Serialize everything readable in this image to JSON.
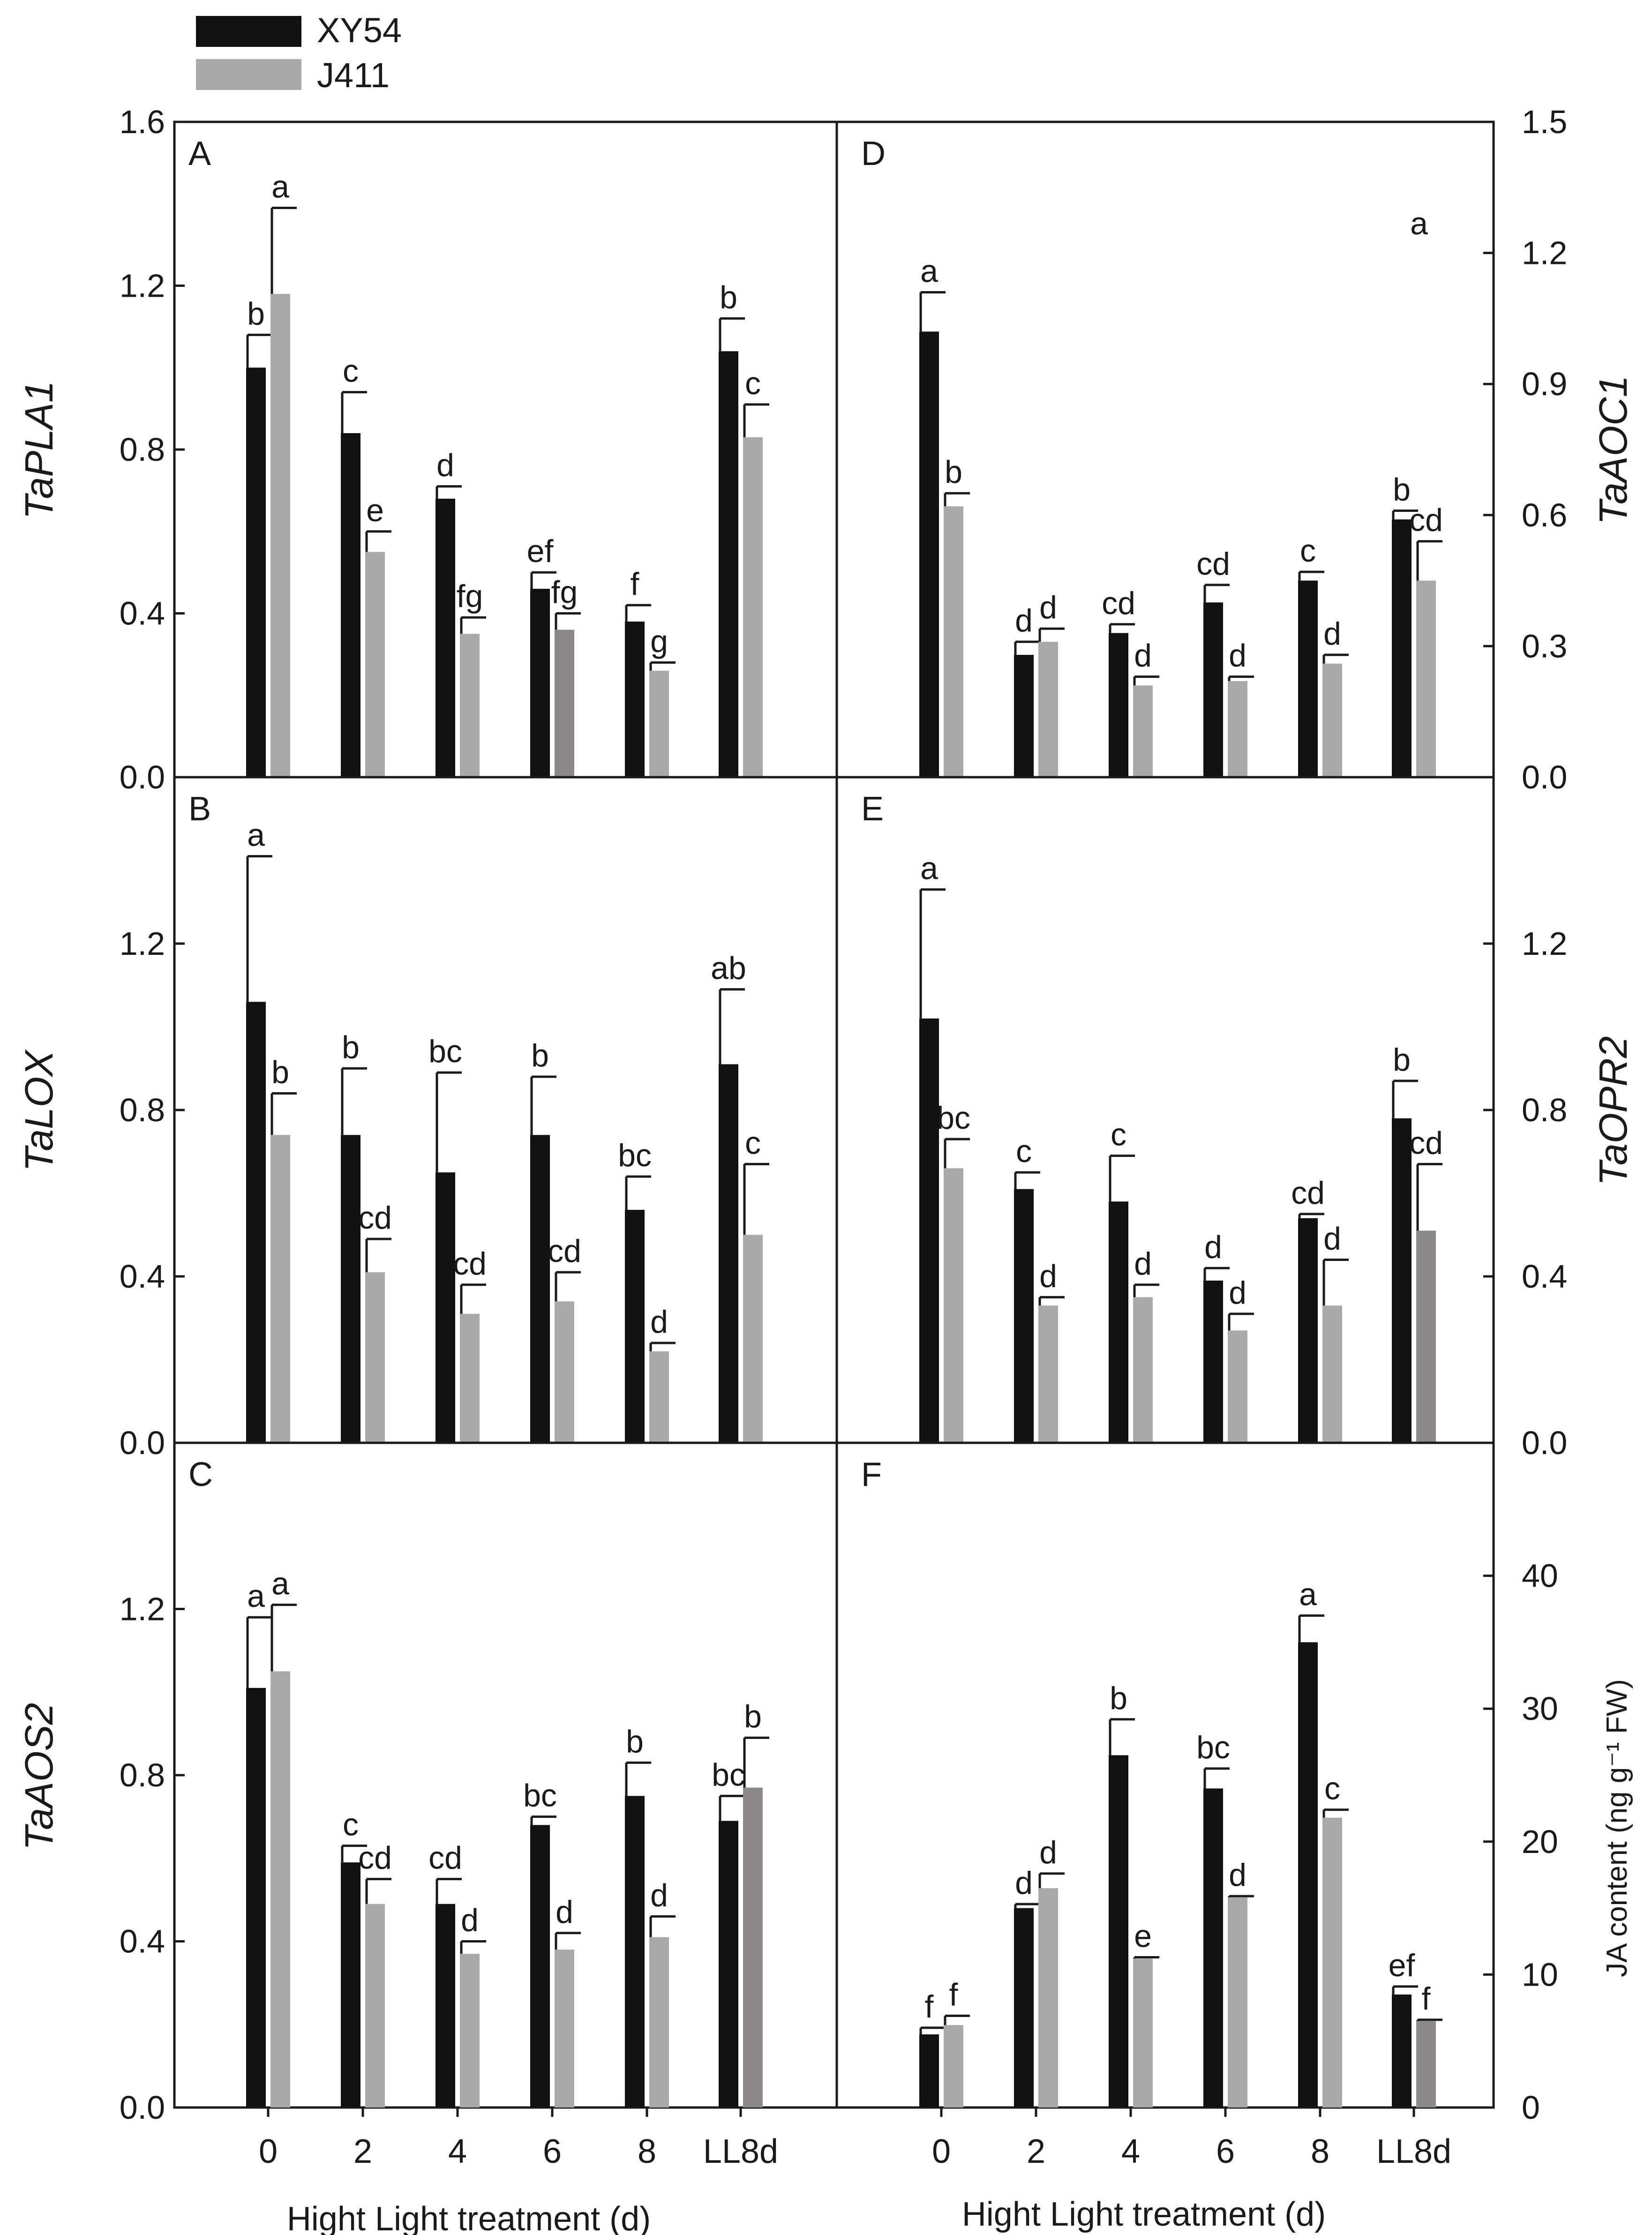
{
  "legend": [
    {
      "name": "XY54",
      "color": "#111111"
    },
    {
      "name": "J411",
      "color": "#a9a9a9"
    }
  ],
  "categories": [
    "0",
    "2",
    "4",
    "6",
    "8",
    "LL8d"
  ],
  "xlabel": "Hight Light treatment (d)",
  "special_color": "#8f8888",
  "chart_data": [
    {
      "type": "bar",
      "panel": "A",
      "ylabel": "TaPLA1",
      "ylim": [
        0,
        1.6
      ],
      "yticks": [
        "0.0",
        "0.4",
        "0.8",
        "1.2",
        "1.6"
      ],
      "series": [
        {
          "name": "XY54",
          "values": [
            1.0,
            0.84,
            0.68,
            0.46,
            0.38,
            1.04
          ],
          "errors": [
            0.08,
            0.1,
            0.03,
            0.04,
            0.04,
            0.08
          ],
          "letters": [
            "b",
            "c",
            "d",
            "ef",
            "f",
            "b"
          ]
        },
        {
          "name": "J411",
          "values": [
            1.18,
            0.55,
            0.35,
            0.36,
            0.26,
            0.83
          ],
          "errors": [
            0.21,
            0.05,
            0.04,
            0.04,
            0.02,
            0.08
          ],
          "letters": [
            "a",
            "e",
            "fg",
            "fg",
            "g",
            "c"
          ]
        }
      ],
      "special_bars": [
        [
          1,
          3
        ]
      ]
    },
    {
      "type": "bar",
      "panel": "B",
      "ylabel": "TaLOX",
      "ylim": [
        0,
        1.6
      ],
      "yticks": [
        "0.0",
        "0.4",
        "0.8",
        "1.2"
      ],
      "series": [
        {
          "name": "XY54",
          "values": [
            1.06,
            0.74,
            0.65,
            0.74,
            0.56,
            0.91
          ],
          "errors": [
            0.35,
            0.16,
            0.24,
            0.14,
            0.08,
            0.18
          ],
          "letters": [
            "a",
            "b",
            "bc",
            "b",
            "bc",
            "ab"
          ]
        },
        {
          "name": "J411",
          "values": [
            0.74,
            0.41,
            0.31,
            0.34,
            0.22,
            0.5
          ],
          "errors": [
            0.1,
            0.08,
            0.07,
            0.07,
            0.02,
            0.17
          ],
          "letters": [
            "b",
            "cd",
            "cd",
            "cd",
            "d",
            "c"
          ]
        }
      ],
      "special_bars": []
    },
    {
      "type": "bar",
      "panel": "C",
      "ylabel": "TaAOS2",
      "ylim": [
        0,
        1.6
      ],
      "yticks": [
        "0.0",
        "0.4",
        "0.8",
        "1.2"
      ],
      "series": [
        {
          "name": "XY54",
          "values": [
            1.01,
            0.59,
            0.49,
            0.68,
            0.75,
            0.69
          ],
          "errors": [
            0.17,
            0.04,
            0.06,
            0.02,
            0.08,
            0.06
          ],
          "letters": [
            "a",
            "c",
            "cd",
            "bc",
            "b",
            "bc"
          ]
        },
        {
          "name": "J411",
          "values": [
            1.05,
            0.49,
            0.37,
            0.38,
            0.41,
            0.77
          ],
          "errors": [
            0.16,
            0.06,
            0.03,
            0.04,
            0.05,
            0.12
          ],
          "letters": [
            "a",
            "cd",
            "d",
            "d",
            "d",
            "b"
          ]
        }
      ],
      "special_bars": [
        [
          1,
          5
        ]
      ]
    },
    {
      "type": "bar",
      "panel": "D",
      "ylabel": "TaAOC1",
      "ylim": [
        0,
        1.5
      ],
      "yticks": [
        "0.0",
        "0.3",
        "0.6",
        "0.9",
        "1.2",
        "1.5"
      ],
      "annotation": "a",
      "series": [
        {
          "name": "XY54",
          "values": [
            1.02,
            0.28,
            0.33,
            0.4,
            0.45,
            0.59
          ],
          "errors": [
            0.09,
            0.03,
            0.02,
            0.04,
            0.02,
            0.02
          ],
          "letters": [
            "a",
            "d",
            "cd",
            "cd",
            "c",
            "b"
          ]
        },
        {
          "name": "J411",
          "values": [
            0.62,
            0.31,
            0.21,
            0.22,
            0.26,
            0.45
          ],
          "errors": [
            0.03,
            0.03,
            0.02,
            0.01,
            0.02,
            0.09
          ],
          "letters": [
            "b",
            "d",
            "d",
            "d",
            "d",
            "cd"
          ]
        }
      ],
      "special_bars": []
    },
    {
      "type": "bar",
      "panel": "E",
      "ylabel": "TaOPR2",
      "ylim": [
        0,
        1.6
      ],
      "yticks": [
        "0.0",
        "0.4",
        "0.8",
        "1.2"
      ],
      "series": [
        {
          "name": "XY54",
          "values": [
            1.02,
            0.61,
            0.58,
            0.39,
            0.54,
            0.78
          ],
          "errors": [
            0.31,
            0.04,
            0.11,
            0.03,
            0.01,
            0.09
          ],
          "letters": [
            "a",
            "c",
            "c",
            "d",
            "cd",
            "b"
          ]
        },
        {
          "name": "J411",
          "values": [
            0.66,
            0.33,
            0.35,
            0.27,
            0.33,
            0.51
          ],
          "errors": [
            0.07,
            0.02,
            0.03,
            0.04,
            0.11,
            0.16
          ],
          "letters": [
            "bc",
            "d",
            "d",
            "d",
            "d",
            "cd"
          ]
        }
      ],
      "special_bars": [
        [
          1,
          5
        ]
      ]
    },
    {
      "type": "bar",
      "panel": "F",
      "ylabel": "JA content (ng g⁻¹ FW)",
      "ylim": [
        0,
        50
      ],
      "yticks": [
        "0",
        "10",
        "20",
        "30",
        "40"
      ],
      "series": [
        {
          "name": "XY54",
          "values": [
            5.5,
            15.0,
            26.5,
            24.0,
            35.0,
            8.5
          ],
          "errors": [
            0.5,
            0.3,
            2.7,
            1.5,
            2.0,
            0.6
          ],
          "letters": [
            "f",
            "d",
            "b",
            "bc",
            "a",
            "ef"
          ]
        },
        {
          "name": "J411",
          "values": [
            6.2,
            16.5,
            11.2,
            15.8,
            21.8,
            6.5
          ],
          "errors": [
            0.7,
            1.1,
            0.1,
            0.1,
            0.6,
            0.1
          ],
          "letters": [
            "f",
            "d",
            "e",
            "d",
            "c",
            "f"
          ]
        }
      ],
      "special_bars": [
        [
          1,
          5
        ]
      ]
    }
  ]
}
